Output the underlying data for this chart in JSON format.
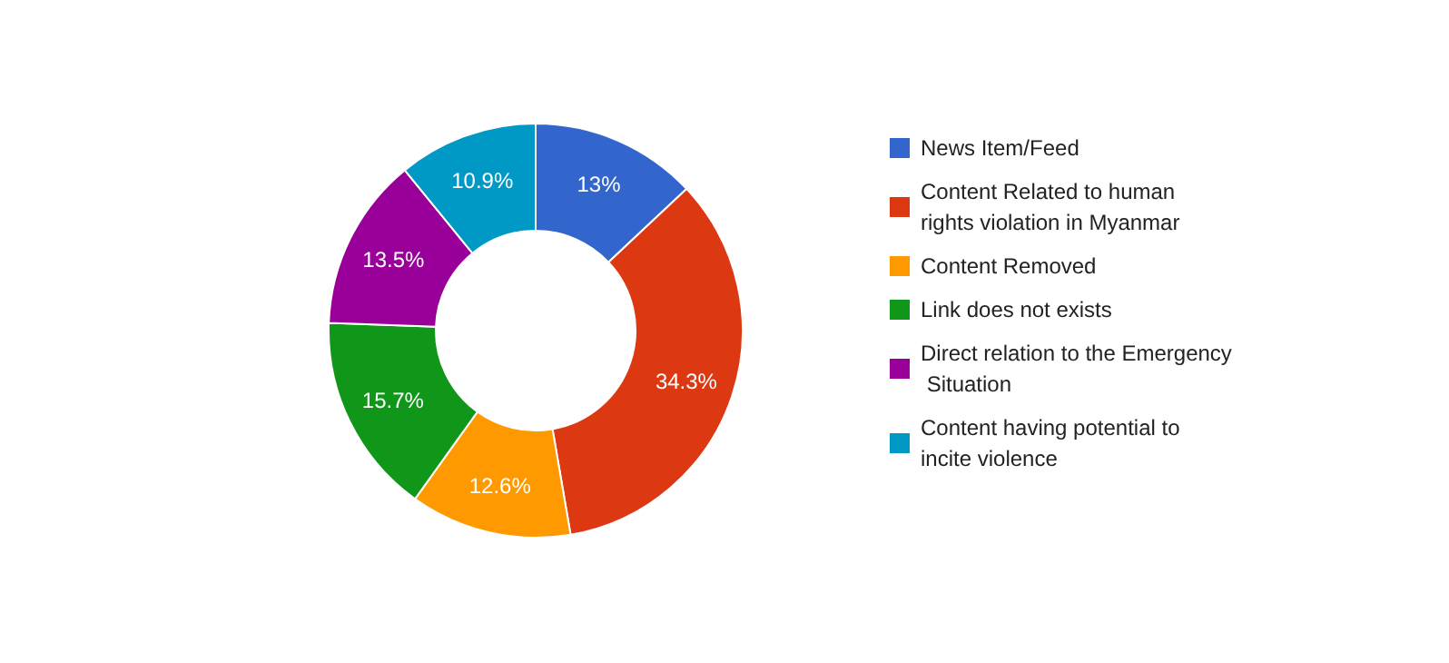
{
  "chart_data": {
    "type": "donut",
    "categories": [
      "News Item/Feed",
      "Content Related to human rights violation in Myanmar",
      "Content Removed",
      "Link does not exists",
      "Direct relation to the Emergency Situation",
      "Content having potential to incite violence"
    ],
    "values": [
      13,
      34.3,
      12.6,
      15.7,
      13.5,
      10.9
    ],
    "value_labels": [
      "13%",
      "34.3%",
      "12.6%",
      "15.7%",
      "13.5%",
      "10.9%"
    ],
    "colors": [
      "#3366cc",
      "#dc3912",
      "#ff9900",
      "#109618",
      "#990099",
      "#0099c6"
    ],
    "legend": "right"
  }
}
